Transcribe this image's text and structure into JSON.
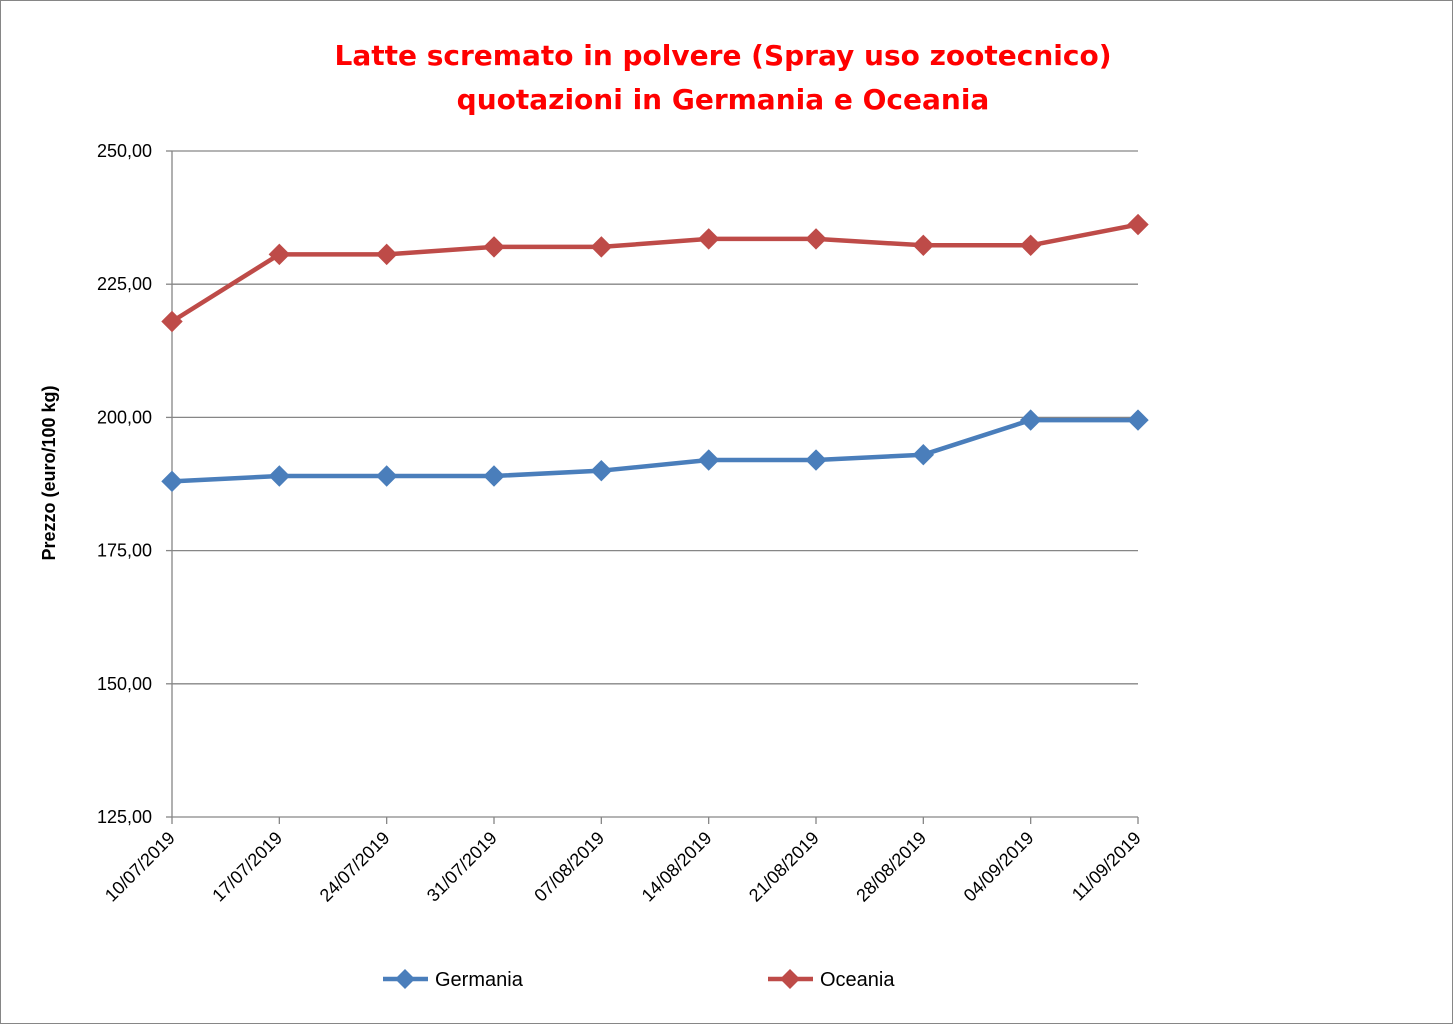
{
  "chart_data": {
    "type": "line",
    "title": [
      "Latte scremato in polvere (Spray uso zootecnico)",
      "quotazioni in Germania e Oceania"
    ],
    "xlabel": "",
    "ylabel": "Prezzo (euro/100 kg)",
    "ylim": [
      125,
      250
    ],
    "yticks": [
      125,
      150,
      175,
      200,
      225,
      250
    ],
    "ytick_labels": [
      "125,00",
      "150,00",
      "175,00",
      "200,00",
      "225,00",
      "250,00"
    ],
    "grid": true,
    "legend_position": "bottom",
    "categories": [
      "10/07/2019",
      "17/07/2019",
      "24/07/2019",
      "31/07/2019",
      "07/08/2019",
      "14/08/2019",
      "21/08/2019",
      "28/08/2019",
      "04/09/2019",
      "11/09/2019"
    ],
    "series": [
      {
        "name": "Germania",
        "color": "#4a7ebb",
        "values": [
          188,
          189,
          189,
          189,
          190,
          192,
          192,
          193,
          199.5,
          199.5
        ]
      },
      {
        "name": "Oceania",
        "color": "#be4b48",
        "values": [
          218,
          230.6,
          230.6,
          232,
          232,
          233.5,
          233.5,
          232.3,
          232.3,
          236.2
        ]
      }
    ]
  }
}
